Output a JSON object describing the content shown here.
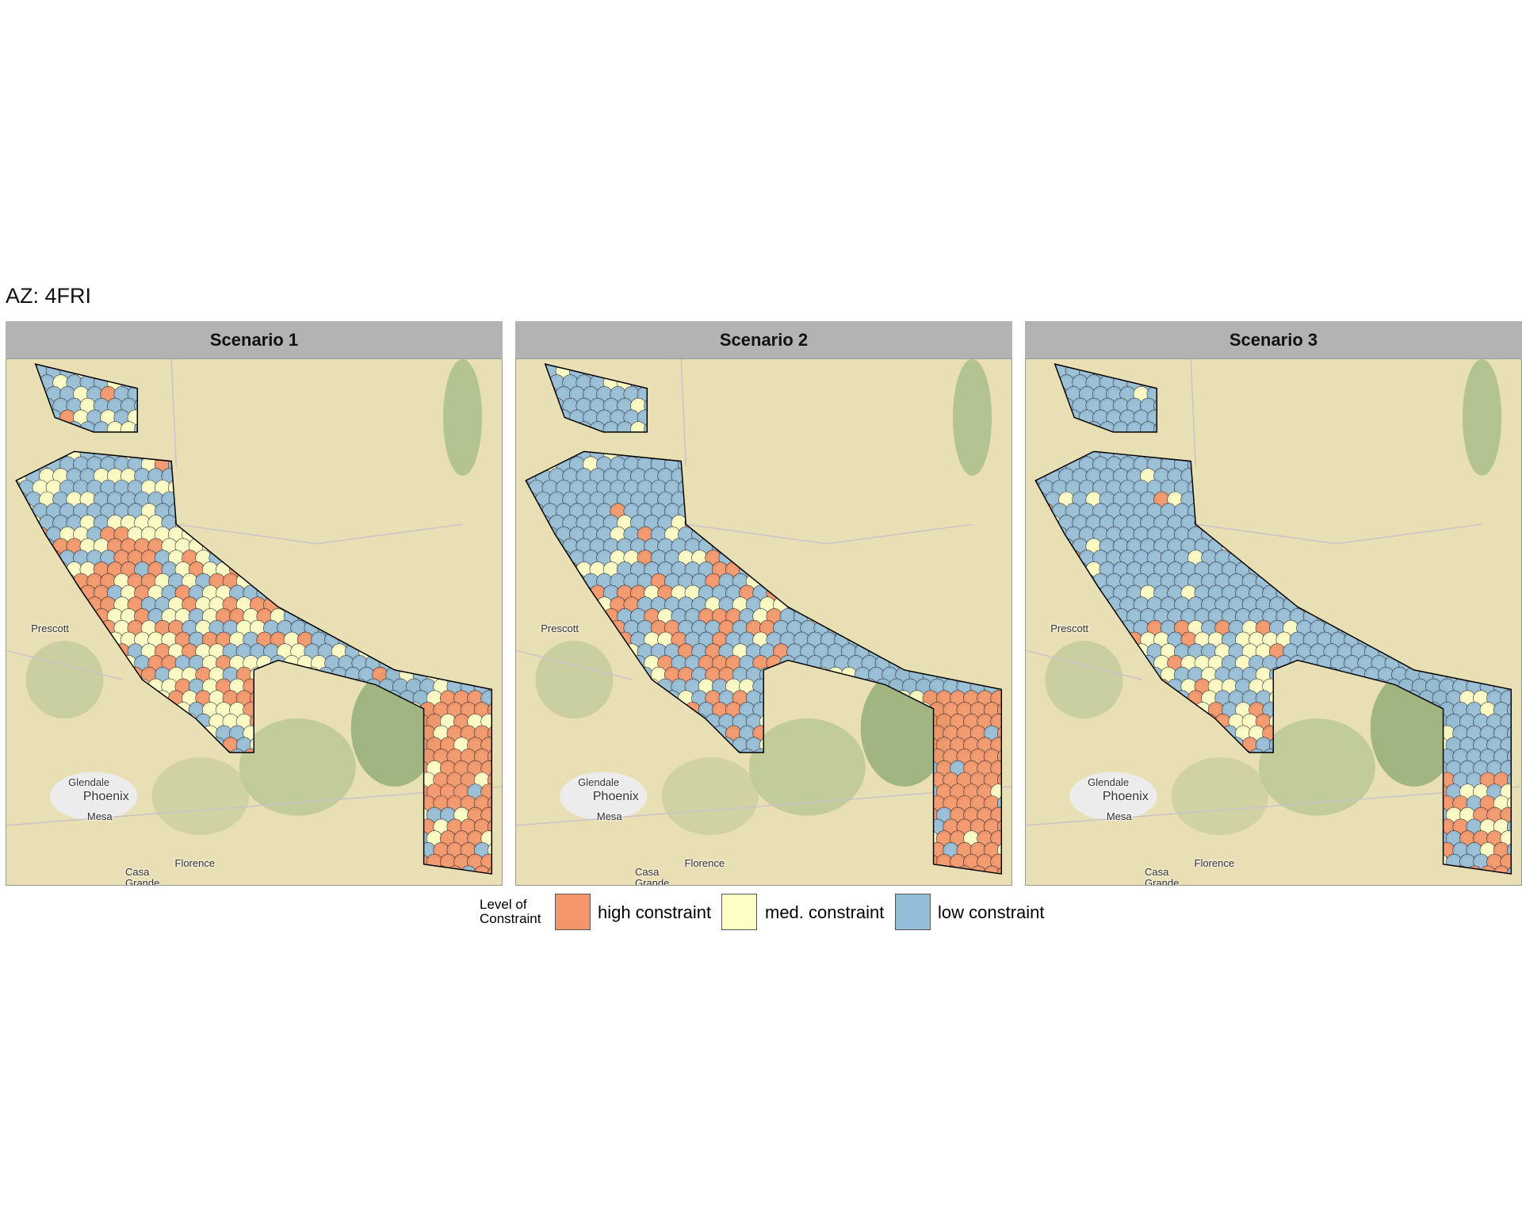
{
  "title": "AZ: 4FRI",
  "panels": [
    {
      "title": "Scenario 1"
    },
    {
      "title": "Scenario 2"
    },
    {
      "title": "Scenario 3"
    }
  ],
  "map_labels": [
    {
      "text": "Prescott",
      "x": 5,
      "y": 50.2
    },
    {
      "text": "Glendale",
      "x": 12.5,
      "y": 79.5
    },
    {
      "text": "Phoenix",
      "x": 15.5,
      "y": 82.2,
      "big": true
    },
    {
      "text": "Mesa",
      "x": 16.3,
      "y": 86.0
    },
    {
      "text": "Casa\nGrande",
      "x": 24,
      "y": 96.5
    },
    {
      "text": "Florence",
      "x": 34,
      "y": 94.8
    }
  ],
  "legend": {
    "title": "Level of\nConstraint",
    "items": [
      {
        "name": "high constraint",
        "color": "#f4956a"
      },
      {
        "name": "med. constraint",
        "color": "#fdfdc6"
      },
      {
        "name": "low constraint",
        "color": "#93bdd9"
      }
    ]
  }
}
